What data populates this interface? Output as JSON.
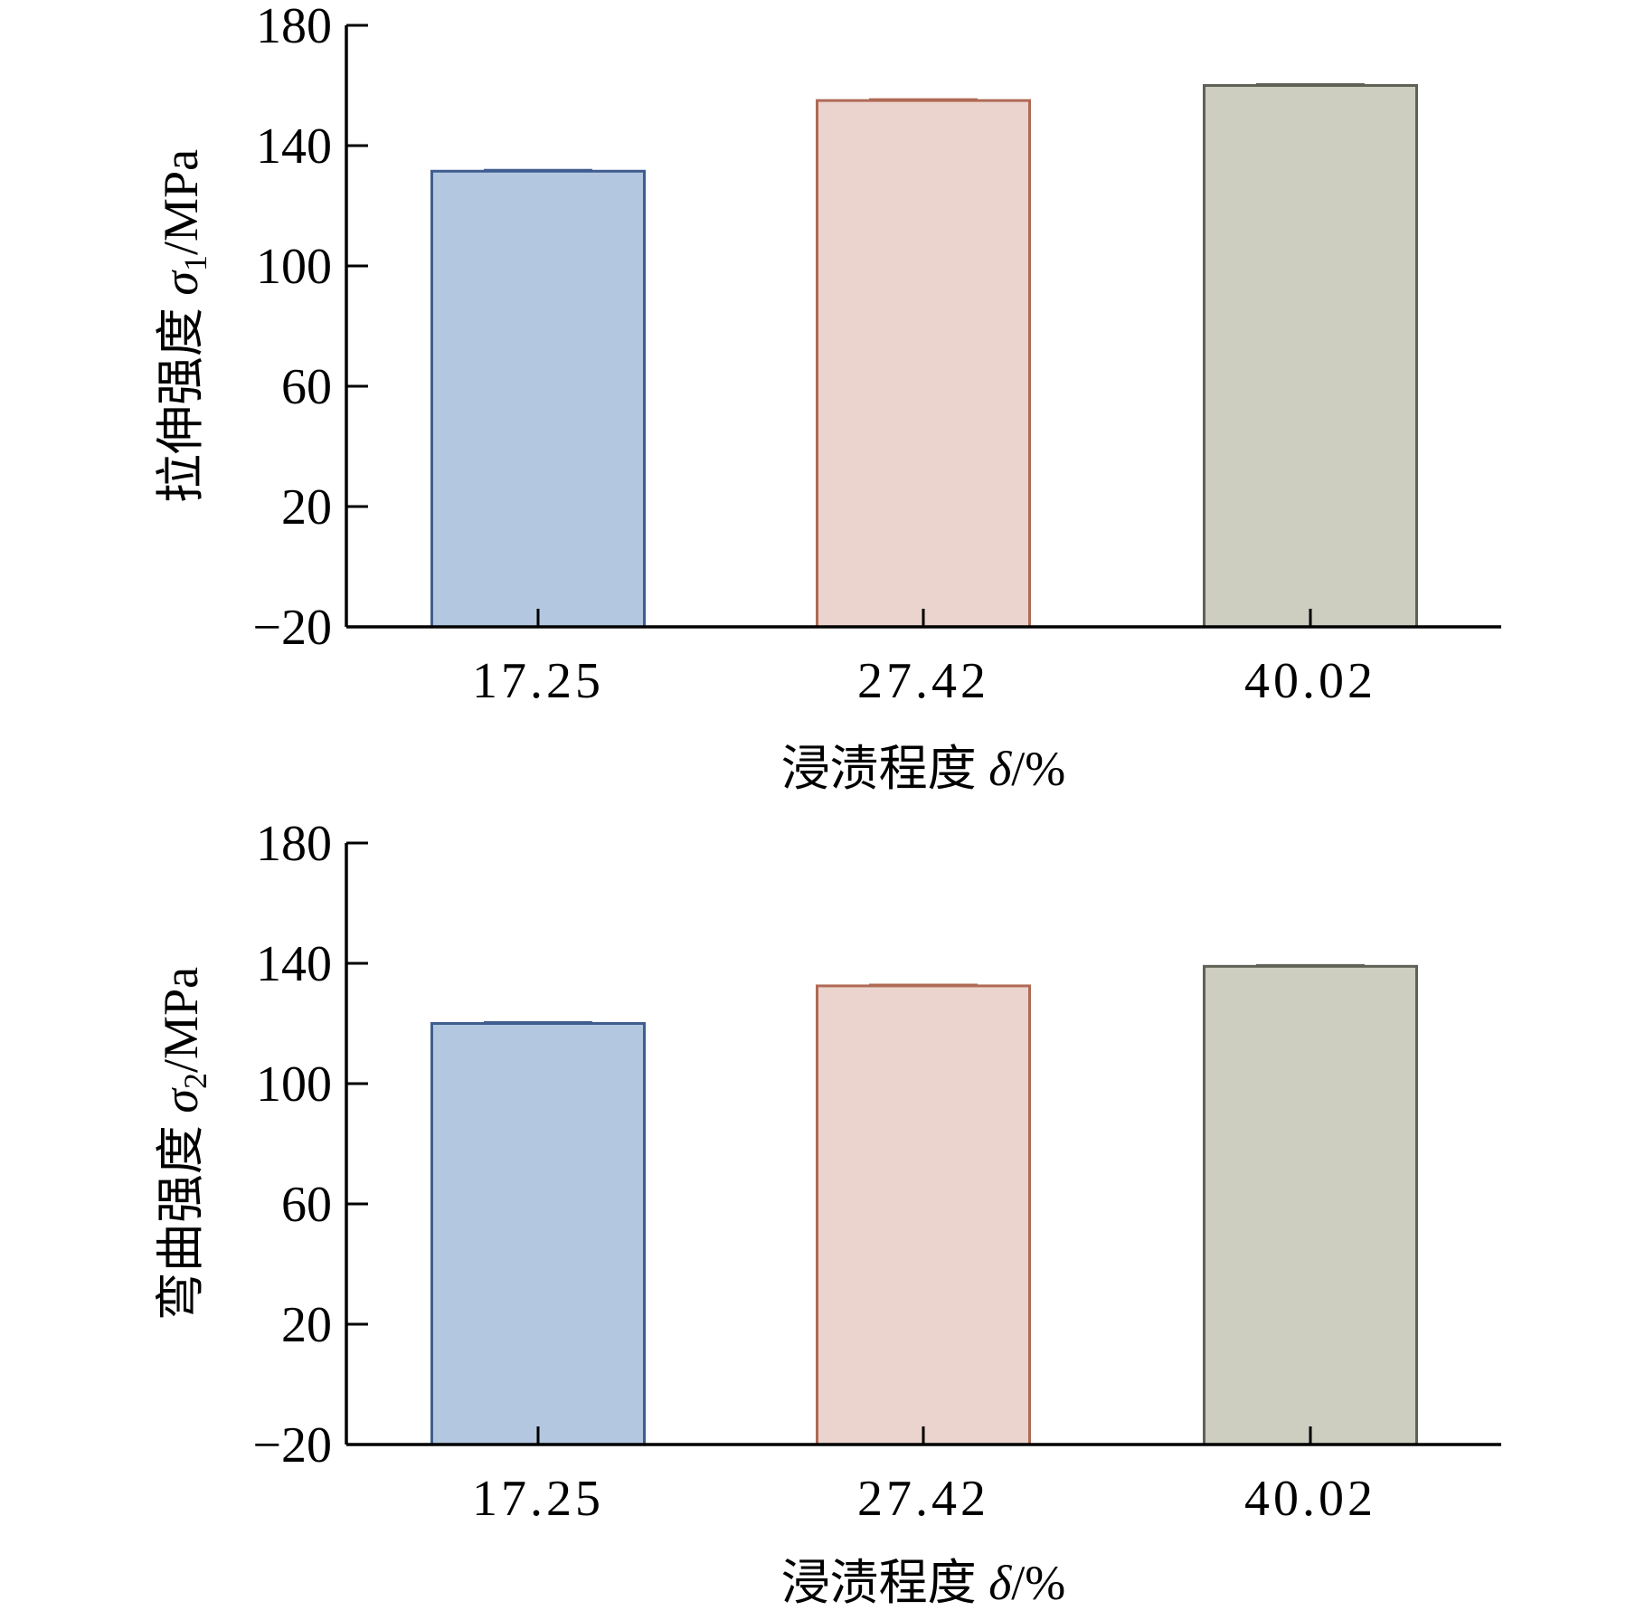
{
  "chart_data": [
    {
      "type": "bar",
      "categories": [
        "17.25",
        "27.42",
        "40.02"
      ],
      "values": [
        131.5,
        155,
        160
      ],
      "xlabel": "浸渍程度 δ/%",
      "ylabel": "拉伸强度 σ1/MPa",
      "ylabel_parts": {
        "text": "拉伸强度 ",
        "symbol": "σ",
        "subscript": "1",
        "unit": "/MPa"
      },
      "xlabel_parts": {
        "text": "浸渍程度 ",
        "symbol": "δ",
        "unit": "/%"
      },
      "yticks": [
        "180",
        "140",
        "100",
        "60",
        "20",
        "−20"
      ],
      "ylim": [
        -20,
        180
      ],
      "colors": {
        "fill": [
          "#b3c7e0",
          "#ead4cd",
          "#cdcdc0"
        ],
        "stroke": [
          "#3f5e8f",
          "#b06a55",
          "#5e6155"
        ]
      }
    },
    {
      "type": "bar",
      "categories": [
        "17.25",
        "27.42",
        "40.02"
      ],
      "values": [
        120,
        132.5,
        139
      ],
      "xlabel": "浸渍程度 δ/%",
      "ylabel": "弯曲强度 σ2/MPa",
      "ylabel_parts": {
        "text": "弯曲强度 ",
        "symbol": "σ",
        "subscript": "2",
        "unit": "/MPa"
      },
      "xlabel_parts": {
        "text": "浸渍程度 ",
        "symbol": "δ",
        "unit": "/%"
      },
      "yticks": [
        "180",
        "140",
        "100",
        "60",
        "20",
        "−20"
      ],
      "ylim": [
        -20,
        180
      ],
      "colors": {
        "fill": [
          "#b3c7e0",
          "#ead4cd",
          "#cdcdc0"
        ],
        "stroke": [
          "#3f5e8f",
          "#b06a55",
          "#5e6155"
        ]
      }
    }
  ]
}
